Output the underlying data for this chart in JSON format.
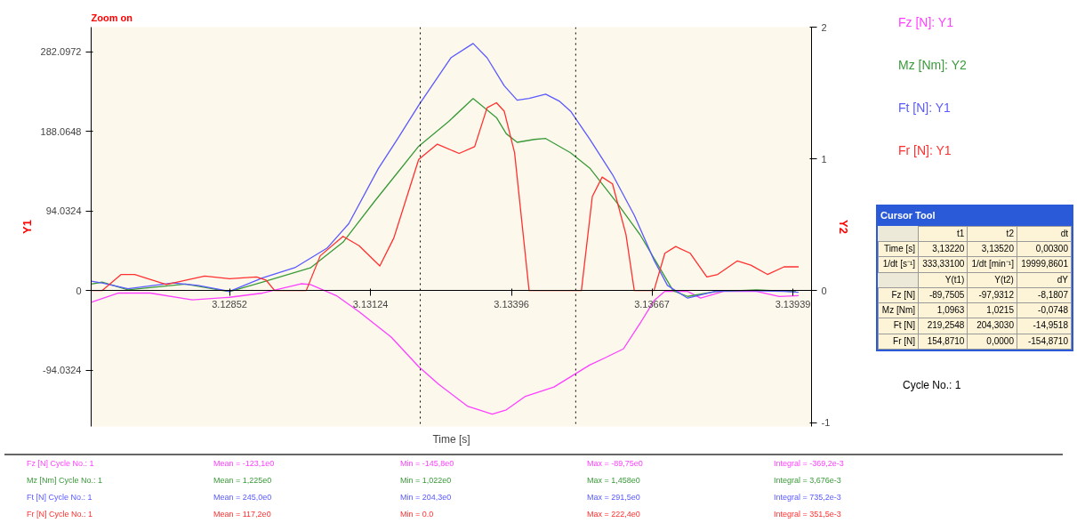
{
  "chart_data": [
    {
      "type": "line",
      "xlabel": "Time [s]",
      "ylabel": "Y1",
      "y2label": "Y2",
      "xlim": [
        3.12585,
        3.13975
      ],
      "xticks": [
        3.12852,
        3.13124,
        3.13396,
        3.13667,
        3.13939
      ],
      "ylim": [
        -160.7,
        311.3
      ],
      "yticks": [
        282.0972,
        188.0648,
        94.0324,
        0,
        -94.0324
      ],
      "y2lim": [
        -1.03,
        2
      ],
      "y2ticks": [
        2,
        1,
        0,
        -1
      ],
      "grid": false,
      "legend": "right",
      "annotations": [
        "Zoom on",
        "Cycle No.: 1"
      ],
      "ref_lines": [
        {
          "axis": "x",
          "value": 3.1322,
          "color": "#000000",
          "line_style": "dotted"
        },
        {
          "axis": "x",
          "value": 3.1352,
          "color": "#000000",
          "line_style": "dotted"
        }
      ],
      "series": [
        {
          "name": "Fz [N]: Y1",
          "color": "#ff40ff",
          "x": [
            3.12585,
            3.12638,
            3.12699,
            3.1278,
            3.12852,
            3.12916,
            3.1299,
            3.13008,
            3.13058,
            3.13102,
            3.13164,
            3.13217,
            3.13256,
            3.13312,
            3.13359,
            3.13386,
            3.13423,
            3.13478,
            3.1351,
            3.13547,
            3.13575,
            3.13612,
            3.13644,
            3.13671,
            3.13692,
            3.13736,
            3.13761,
            3.13805,
            3.13869,
            3.13913,
            3.1395
          ],
          "values": [
            -14,
            -3,
            -3,
            -11,
            -8,
            -3,
            8,
            7,
            -6,
            -25,
            -55,
            -90,
            -111,
            -137,
            -146,
            -141,
            -125,
            -114,
            -102,
            -88,
            -80,
            -69,
            -39,
            -12,
            -1,
            -1,
            -9,
            -1,
            -1,
            -7,
            -6
          ]
        },
        {
          "name": "Mz [Nm]: Y2",
          "color": "#3a9a3a",
          "axis": "y2",
          "x": [
            3.12585,
            3.12606,
            3.12656,
            3.12767,
            3.12852,
            3.12916,
            3.13008,
            3.13071,
            3.13132,
            3.13176,
            3.13217,
            3.13275,
            3.13322,
            3.13367,
            3.13386,
            3.13407,
            3.1344,
            3.13462,
            3.1351,
            3.13547,
            3.136,
            3.13644,
            3.13681,
            3.13708,
            3.13736,
            3.13789,
            3.13869,
            3.13945
          ],
          "values": [
            0.051,
            0.065,
            0.007,
            0.051,
            -0.007,
            0.065,
            0.173,
            0.368,
            0.679,
            0.895,
            1.096,
            1.285,
            1.458,
            1.314,
            1.191,
            1.126,
            1.148,
            1.155,
            1.047,
            0.931,
            0.664,
            0.426,
            0.181,
            0,
            -0.043,
            -0.007,
            0.007,
            -0.007
          ]
        },
        {
          "name": "Ft [N]: Y1",
          "color": "#5a5aff",
          "x": [
            3.12585,
            3.12606,
            3.12656,
            3.12743,
            3.12791,
            3.12852,
            3.12916,
            3.12978,
            3.1304,
            3.13082,
            3.13139,
            3.13176,
            3.13217,
            3.13279,
            3.13322,
            3.13349,
            3.13382,
            3.13407,
            3.1343,
            3.13462,
            3.13488,
            3.1351,
            3.13547,
            3.13591,
            3.13633,
            3.13671,
            3.13697,
            3.13736,
            3.13789,
            3.13842,
            3.13922,
            3.1395
          ],
          "values": [
            11,
            9,
            2,
            9,
            6,
            -1,
            15,
            27,
            50,
            79,
            144,
            179,
            219,
            275,
            292,
            275,
            242,
            225,
            227,
            232,
            224,
            212,
            179,
            137,
            89,
            36,
            6,
            -9,
            -1,
            0,
            -1,
            -2
          ]
        },
        {
          "name": "Fr [N]: Y1",
          "color": "#ff3030",
          "x": [
            3.12585,
            3.12606,
            3.12643,
            3.12669,
            3.1273,
            3.12804,
            3.12852,
            3.12904,
            3.12923,
            3.12939,
            3.13,
            3.13027,
            3.13071,
            3.13102,
            3.13142,
            3.13169,
            3.13217,
            3.13253,
            3.13295,
            3.13325,
            3.13349,
            3.13367,
            3.13382,
            3.13402,
            3.1343,
            3.13531,
            3.13552,
            3.13571,
            3.13591,
            3.13617,
            3.13633,
            3.13671,
            3.13692,
            3.13713,
            3.13741,
            3.13773,
            3.13794,
            3.13832,
            3.13858,
            3.1389,
            3.13922,
            3.1395
          ],
          "values": [
            0,
            0,
            19,
            19,
            7,
            17,
            14,
            16,
            12,
            0,
            0,
            41,
            64,
            53,
            29,
            62,
            155,
            173,
            162,
            170,
            216,
            222,
            212,
            163,
            0,
            0,
            111,
            134,
            126,
            66,
            0,
            0,
            44,
            52,
            44,
            16,
            19,
            35,
            30,
            19,
            28,
            28
          ]
        }
      ]
    },
    {
      "type": "other",
      "title": "Cursor Tool",
      "annotations": [
        "t1",
        "t2",
        "dt",
        "Time [s]",
        "3,13220",
        "3,13520",
        "0,00300",
        "1/dt [s⁻¹]",
        "333,33100",
        "1/dt [min⁻¹]",
        "19999,8601",
        "Y(t1)",
        "Y(t2)",
        "dY",
        "Fz [N]",
        "-89,7505",
        "-97,9312",
        "-8,1807",
        "Mz [Nm]",
        "1,0963",
        "1,0215",
        "-0,0748",
        "Ft [N]",
        "219,2548",
        "204,3030",
        "-14,9518",
        "Fr [N]",
        "154,8710",
        "0,0000",
        "-154,8710"
      ]
    },
    {
      "type": "other",
      "annotations": [
        "Fz [N] Cycle No.: 1",
        "Mean = -123,1e0",
        "Min = -145,8e0",
        "Max = -89,75e0",
        "Integral = -369,2e-3",
        "Mz [Nm] Cycle No.: 1",
        "Mean = 1,225e0",
        "Min = 1,022e0",
        "Max = 1,458e0",
        "Integral = 3,676e-3",
        "Ft [N] Cycle No.: 1",
        "Mean = 245,0e0",
        "Min = 204,3e0",
        "Max = 291,5e0",
        "Integral = 735,2e-3",
        "Fr [N] Cycle No.: 1",
        "Mean = 117,2e0",
        "Min = 0.0",
        "Max = 222,4e0",
        "Integral = 351,5e-3"
      ]
    }
  ]
}
